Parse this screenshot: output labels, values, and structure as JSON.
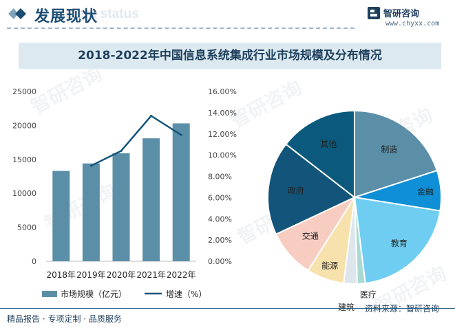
{
  "header": {
    "title": "发展现状",
    "ghost_text": "ment status",
    "brand_name": "智研咨询",
    "brand_url": "www.chyxx.com"
  },
  "title": "2018-2022年中国信息系统集成行业市场规模及分布情况",
  "watermark": "智研咨询",
  "colors": {
    "bar": "#5b8fa8",
    "line": "#13547a",
    "heading": "#1c4d73",
    "title_band": "#dce9f1"
  },
  "chart_data": [
    {
      "type": "bar",
      "categories": [
        "2018年",
        "2019年",
        "2020年",
        "2021年",
        "2022年"
      ],
      "series": [
        {
          "name": "市场规模（亿元）",
          "axis": "left",
          "kind": "bar",
          "values": [
            13300,
            14400,
            15900,
            18100,
            20300
          ]
        },
        {
          "name": "增速（%）",
          "axis": "right",
          "kind": "line",
          "values": [
            null,
            0.09,
            0.104,
            0.137,
            0.119
          ]
        }
      ],
      "y_left": {
        "ticks": [
          "0",
          "5000",
          "10000",
          "15000",
          "20000",
          "25000"
        ],
        "range": [
          0,
          25000
        ]
      },
      "y_right": {
        "ticks": [
          "0.00%",
          "2.00%",
          "4.00%",
          "6.00%",
          "8.00%",
          "10.00%",
          "12.00%",
          "14.00%",
          "16.00%"
        ],
        "range": [
          0,
          0.16
        ]
      },
      "legend": [
        {
          "label": "市场规模（亿元）",
          "kind": "bar"
        },
        {
          "label": "增速（%）",
          "kind": "line"
        }
      ],
      "legend_position": "bottom",
      "grid": false
    },
    {
      "type": "pie",
      "slices": [
        {
          "label": "制造",
          "value": 20.0,
          "color": "#5b8fa8"
        },
        {
          "label": "金融",
          "value": 7.5,
          "color": "#0e8fd6"
        },
        {
          "label": "教育",
          "value": 20.5,
          "color": "#6fcdf1"
        },
        {
          "label": "医疗",
          "value": 1.5,
          "color": "#a9d9d2"
        },
        {
          "label": "建筑",
          "value": 2.5,
          "color": "#dce6ec"
        },
        {
          "label": "能源",
          "value": 7.0,
          "color": "#f7e2ad"
        },
        {
          "label": "交通",
          "value": 9.0,
          "color": "#f7cdc2"
        },
        {
          "label": "政府",
          "value": 17.5,
          "color": "#13547a"
        },
        {
          "label": "其他",
          "value": 14.5,
          "color": "#0b5a7d"
        }
      ]
    }
  ],
  "source": "资料来源：智研咨询",
  "footer": "精品报告 · 专项定制 · 品质服务"
}
